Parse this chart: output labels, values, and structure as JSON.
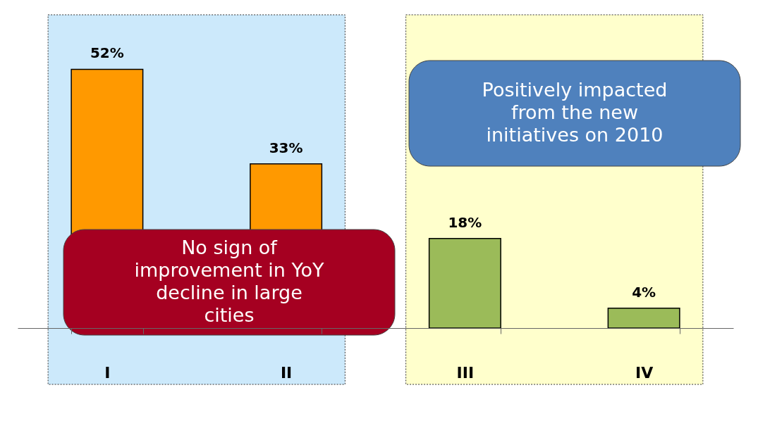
{
  "chart_data": {
    "type": "bar",
    "categories": [
      "I",
      "II",
      "III",
      "IV"
    ],
    "values": [
      52,
      33,
      18,
      4
    ],
    "value_labels": [
      "52%",
      "33%",
      "18%",
      "4%"
    ],
    "colors": [
      "#ff9900",
      "#ff9900",
      "#9bbb59",
      "#9bbb59"
    ],
    "tick_labels": "x",
    "bands": [
      {
        "axis": "x",
        "from": "I",
        "to": "II",
        "color": "#cce9fb"
      },
      {
        "axis": "x",
        "from": "III",
        "to": "IV",
        "color": "#ffffcc"
      }
    ],
    "annotations": [
      "No sign of improvement in YoY decline in large cities",
      "Positively impacted from the new initiatives on 2010"
    ]
  }
}
